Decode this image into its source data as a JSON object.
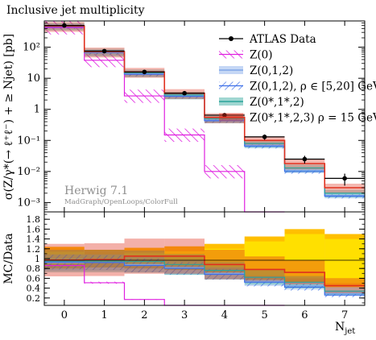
{
  "chart_data": [
    {
      "type": "bar",
      "panel": "main",
      "title": "Inclusive jet multiplicity",
      "ylabel": "σ(Z/γ*(→ ℓ⁺ℓ⁻) + ≥ Njet) [pb]",
      "yscale": "log",
      "ylim": [
        0.0005,
        700
      ],
      "yticks": [
        "10²",
        "10",
        "1",
        "10⁻¹",
        "10⁻²",
        "10⁻³"
      ],
      "categories": [
        "0",
        "1",
        "2",
        "3",
        "4",
        "5",
        "6",
        "7"
      ],
      "grid": false,
      "legend_position": "top-right",
      "series": [
        {
          "name": "ATLAS Data",
          "style": "points",
          "color": "#000000",
          "values": [
            500,
            75,
            16,
            3.3,
            0.65,
            0.13,
            0.025,
            0.006
          ],
          "errors": [
            25,
            5,
            1.3,
            0.3,
            0.09,
            0.025,
            0.007,
            0.0025
          ]
        },
        {
          "name": "Z(0)",
          "style": "hatch",
          "color": "#e020e0",
          "values": [
            430,
            38,
            2.7,
            0.15,
            0.01,
            0.0003,
            null,
            null
          ]
        },
        {
          "name": "Z(0,1,2)",
          "style": "band",
          "color": "#7fa6e8",
          "values": [
            470,
            68,
            14,
            2.7,
            0.45,
            0.07,
            0.011,
            0.0017
          ]
        },
        {
          "name": "Z(0,1,2), ρ ∈ [5,20] GeV",
          "style": "hatch",
          "color": "#3d6fe8",
          "values": [
            460,
            67,
            13.5,
            2.6,
            0.43,
            0.065,
            0.01,
            0.0016
          ]
        },
        {
          "name": "Z(0*,1*,2)",
          "style": "band",
          "color": "#2aa39a",
          "values": [
            475,
            70,
            15,
            2.9,
            0.5,
            0.08,
            0.013,
            0.002
          ]
        },
        {
          "name": "Z(0*,1*,2,3) ρ = 15 GeV",
          "style": "band",
          "color": "#e0301e",
          "values": [
            480,
            72,
            16,
            3.3,
            0.55,
            0.1,
            0.018,
            0.003
          ]
        }
      ],
      "annotations": [
        "Herwig 7.1",
        "MadGraph/OpenLoops/ColorFull"
      ]
    },
    {
      "type": "bar",
      "panel": "ratio",
      "ylabel": "MC/Data",
      "xlabel": "Njet",
      "ylim": [
        0.05,
        1.95
      ],
      "yticks": [
        "1.8",
        "1.6",
        "1.4",
        "1.2",
        "1",
        "0.8",
        "0.6",
        "0.4",
        "0.2"
      ],
      "categories": [
        "0",
        "1",
        "2",
        "3",
        "4",
        "5",
        "6",
        "7"
      ],
      "data_uncertainty": [
        [
          0.88,
          1.14
        ],
        [
          0.9,
          1.08
        ],
        [
          0.88,
          1.12
        ],
        [
          0.85,
          1.15
        ],
        [
          0.8,
          1.2
        ],
        [
          0.65,
          1.35
        ],
        [
          0.6,
          1.5
        ],
        [
          0.5,
          1.4
        ]
      ],
      "series": [
        {
          "name": "Z(0)",
          "values": [
            0.86,
            0.51,
            0.17,
            0.045,
            0.015,
            0.01,
            null,
            null
          ]
        },
        {
          "name": "Z(0,1,2)",
          "values": [
            0.92,
            0.92,
            0.88,
            0.82,
            0.7,
            0.54,
            0.45,
            0.29
          ]
        },
        {
          "name": "Z(0,1,2), ρ ∈ [5,20] GeV",
          "values": [
            0.93,
            0.92,
            0.86,
            0.8,
            0.68,
            0.52,
            0.42,
            0.26
          ]
        },
        {
          "name": "Z(0*,1*,2)",
          "values": [
            0.95,
            0.95,
            0.94,
            0.88,
            0.76,
            0.62,
            0.52,
            0.34
          ]
        },
        {
          "name": "Z(0*,1*,2,3) ρ = 15 GeV",
          "values": [
            0.97,
            0.98,
            1.05,
            1.05,
            0.88,
            0.78,
            0.72,
            0.45
          ]
        }
      ]
    }
  ],
  "colors": {
    "data": "#000000",
    "z0": "#e020e0",
    "z012": "#7fa6e8",
    "z012_rho": "#3d6fe8",
    "zstar": "#2aa39a",
    "zstar3": "#e0301e",
    "data_band_inner": "#ffe000",
    "data_band_outer": "#ffbf00",
    "generator_text": "#8f8f8f"
  }
}
